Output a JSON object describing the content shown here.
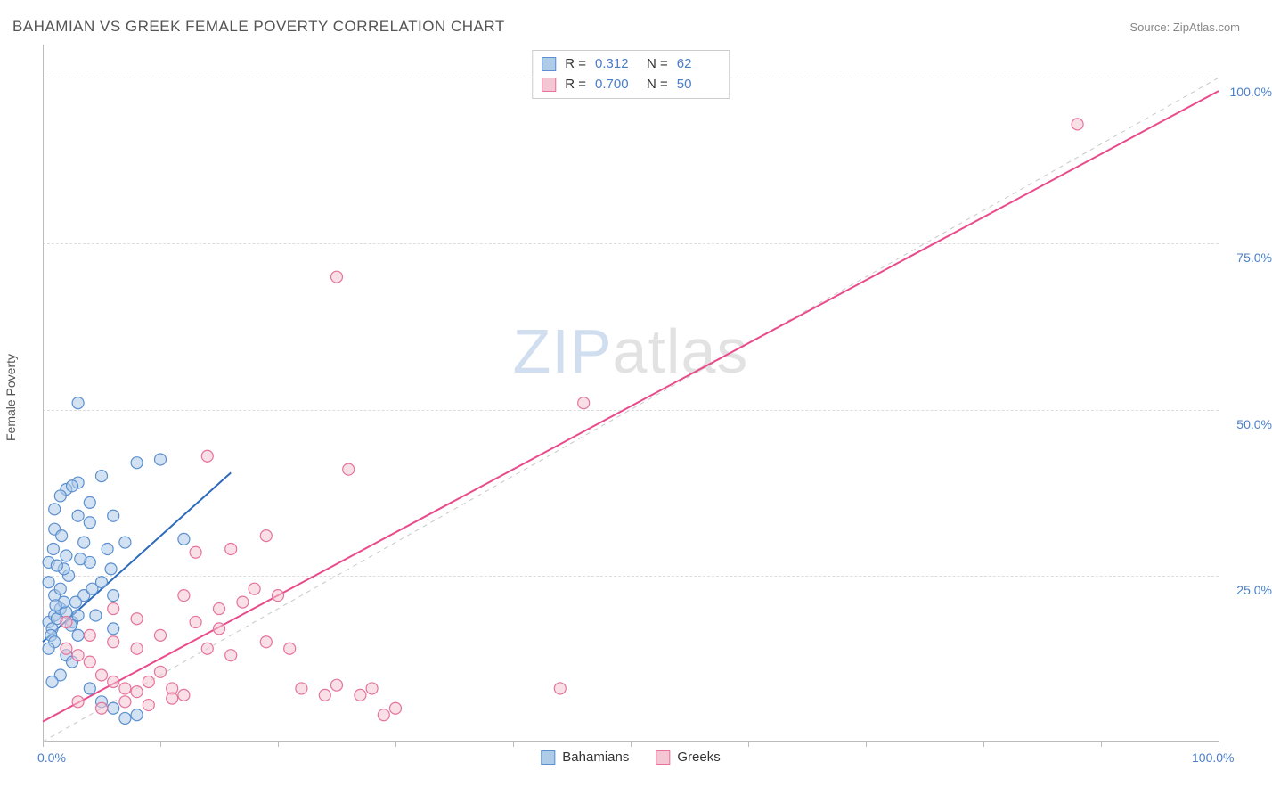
{
  "title": "BAHAMIAN VS GREEK FEMALE POVERTY CORRELATION CHART",
  "source": "Source: ZipAtlas.com",
  "ylabel": "Female Poverty",
  "watermark": {
    "zip": "ZIP",
    "atlas": "atlas"
  },
  "chart": {
    "type": "scatter",
    "xlim": [
      0,
      100
    ],
    "ylim": [
      0,
      105
    ],
    "x_ticks": [
      0,
      10,
      20,
      30,
      40,
      50,
      60,
      70,
      80,
      90,
      100
    ],
    "x_tick_labels": {
      "0": "0.0%",
      "100": "100.0%"
    },
    "y_grid": [
      25,
      50,
      75,
      100
    ],
    "y_tick_labels": {
      "25": "25.0%",
      "50": "50.0%",
      "75": "75.0%",
      "100": "100.0%"
    },
    "background_color": "#ffffff",
    "grid_color": "#dddddd",
    "axis_color": "#bbbbbb",
    "label_color": "#4a7ec9",
    "diagonal_line": {
      "x1": 0,
      "y1": 0,
      "x2": 100,
      "y2": 100,
      "color": "#c8c8c8",
      "dash": "5,5",
      "width": 1
    },
    "series": [
      {
        "name": "Bahamians",
        "fill_color": "#aecbe8",
        "fill_opacity": 0.55,
        "stroke_color": "#5a8fd0",
        "stroke_width": 1.2,
        "marker_radius": 6.5,
        "R": "0.312",
        "N": "62",
        "trend": {
          "x1": 0,
          "y1": 15,
          "x2": 16,
          "y2": 40.5,
          "color": "#2e6bbd",
          "width": 2
        },
        "points": [
          [
            0.5,
            18
          ],
          [
            1,
            19
          ],
          [
            1.2,
            18.5
          ],
          [
            1.5,
            20
          ],
          [
            0.8,
            17
          ],
          [
            2,
            19.5
          ],
          [
            1.8,
            21
          ],
          [
            2.5,
            18
          ],
          [
            1,
            22
          ],
          [
            3,
            19
          ],
          [
            0.7,
            16
          ],
          [
            1.5,
            23
          ],
          [
            2.2,
            25
          ],
          [
            3.5,
            22
          ],
          [
            4,
            27
          ],
          [
            5,
            24
          ],
          [
            5.5,
            29
          ],
          [
            6,
            22
          ],
          [
            7,
            30
          ],
          [
            4.5,
            19
          ],
          [
            1,
            15
          ],
          [
            0.5,
            14
          ],
          [
            2,
            13
          ],
          [
            3,
            16
          ],
          [
            6,
            17
          ],
          [
            8,
            4
          ],
          [
            7,
            3.5
          ],
          [
            6,
            5
          ],
          [
            5,
            6
          ],
          [
            4,
            8
          ],
          [
            1.5,
            10
          ],
          [
            0.8,
            9
          ],
          [
            2.5,
            12
          ],
          [
            1,
            35
          ],
          [
            2,
            38
          ],
          [
            3,
            39
          ],
          [
            2.5,
            38.5
          ],
          [
            4,
            36
          ],
          [
            1.5,
            37
          ],
          [
            3.5,
            30
          ],
          [
            1,
            32
          ],
          [
            2,
            28
          ],
          [
            1.8,
            26
          ],
          [
            0.5,
            27
          ],
          [
            3,
            34
          ],
          [
            5,
            40
          ],
          [
            8,
            42
          ],
          [
            4,
            33
          ],
          [
            6,
            34
          ],
          [
            10,
            42.5
          ],
          [
            12,
            30.5
          ],
          [
            3,
            51
          ],
          [
            0.5,
            24
          ],
          [
            1.2,
            26.5
          ],
          [
            2.8,
            21
          ],
          [
            4.2,
            23
          ],
          [
            1.6,
            31
          ],
          [
            0.9,
            29
          ],
          [
            3.2,
            27.5
          ],
          [
            5.8,
            26
          ],
          [
            2.4,
            17.5
          ],
          [
            1.1,
            20.5
          ]
        ]
      },
      {
        "name": "Greeks",
        "fill_color": "#f4c5d2",
        "fill_opacity": 0.55,
        "stroke_color": "#e5739c",
        "stroke_width": 1.2,
        "marker_radius": 6.5,
        "R": "0.700",
        "N": "50",
        "trend": {
          "x1": 0,
          "y1": 3,
          "x2": 100,
          "y2": 98,
          "color": "#e94b8a",
          "width": 2
        },
        "points": [
          [
            2,
            14
          ],
          [
            3,
            13
          ],
          [
            4,
            12
          ],
          [
            5,
            10
          ],
          [
            6,
            9
          ],
          [
            7,
            8
          ],
          [
            8,
            7.5
          ],
          [
            9,
            9
          ],
          [
            10,
            10.5
          ],
          [
            11,
            8
          ],
          [
            12,
            7
          ],
          [
            4,
            16
          ],
          [
            6,
            15
          ],
          [
            8,
            14
          ],
          [
            10,
            16
          ],
          [
            13,
            18
          ],
          [
            15,
            20
          ],
          [
            17,
            21
          ],
          [
            18,
            23
          ],
          [
            20,
            22
          ],
          [
            14,
            14
          ],
          [
            16,
            13
          ],
          [
            19,
            15
          ],
          [
            21,
            14
          ],
          [
            22,
            8
          ],
          [
            24,
            7
          ],
          [
            25,
            8.5
          ],
          [
            27,
            7
          ],
          [
            28,
            8
          ],
          [
            29,
            4
          ],
          [
            30,
            5
          ],
          [
            26,
            41
          ],
          [
            25,
            70
          ],
          [
            14,
            43
          ],
          [
            13,
            28.5
          ],
          [
            16,
            29
          ],
          [
            19,
            31
          ],
          [
            44,
            8
          ],
          [
            46,
            51
          ],
          [
            88,
            93
          ],
          [
            3,
            6
          ],
          [
            5,
            5
          ],
          [
            7,
            6
          ],
          [
            9,
            5.5
          ],
          [
            11,
            6.5
          ],
          [
            2,
            18
          ],
          [
            6,
            20
          ],
          [
            8,
            18.5
          ],
          [
            12,
            22
          ],
          [
            15,
            17
          ]
        ]
      }
    ]
  },
  "legend_bottom": [
    {
      "label": "Bahamians",
      "fill": "#aecbe8",
      "stroke": "#5a8fd0"
    },
    {
      "label": "Greeks",
      "fill": "#f4c5d2",
      "stroke": "#e5739c"
    }
  ]
}
